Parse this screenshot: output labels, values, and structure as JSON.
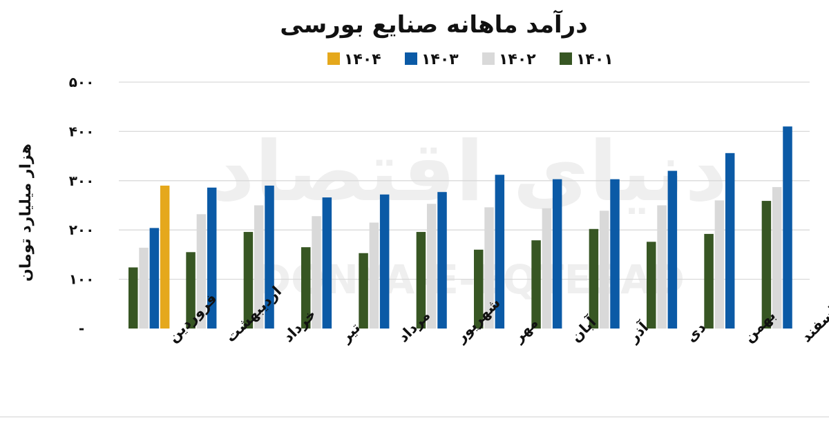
{
  "chart_data": {
    "type": "bar",
    "title": "درآمد ماهانه صنایع بورسی",
    "ylabel": "هزار میلیارد تومان",
    "ylim": [
      0,
      500
    ],
    "yticks": [
      {
        "value": 0,
        "label": "-"
      },
      {
        "value": 100,
        "label": "۱۰۰"
      },
      {
        "value": 200,
        "label": "۲۰۰"
      },
      {
        "value": 300,
        "label": "۳۰۰"
      },
      {
        "value": 400,
        "label": "۴۰۰"
      },
      {
        "value": 500,
        "label": "۵۰۰"
      }
    ],
    "grid": true,
    "legend_position": "top",
    "categories": [
      "فروردین",
      "اردیبهشت",
      "خرداد",
      "تیر",
      "مرداد",
      "شهریور",
      "مهر",
      "آبان",
      "آذر",
      "دی",
      "بهمن",
      "اسفند"
    ],
    "series": [
      {
        "name": "۱۴۰۱",
        "color": "#375623",
        "values": [
          124,
          155,
          196,
          165,
          153,
          196,
          160,
          179,
          202,
          176,
          192,
          259
        ]
      },
      {
        "name": "۱۴۰۲",
        "color": "#d9d9d9",
        "values": [
          164,
          232,
          250,
          228,
          215,
          253,
          246,
          244,
          239,
          250,
          260,
          287
        ]
      },
      {
        "name": "۱۴۰۳",
        "color": "#0b5aa6",
        "values": [
          204,
          286,
          290,
          266,
          272,
          277,
          312,
          303,
          303,
          320,
          356,
          410
        ]
      },
      {
        "name": "۱۴۰۴",
        "color": "#e5a81c",
        "values": [
          290,
          null,
          null,
          null,
          null,
          null,
          null,
          null,
          null,
          null,
          null,
          null
        ]
      }
    ]
  },
  "watermark": {
    "fa": "دنیای اقتصاد",
    "en": "DONYA-E-EQTESAD"
  }
}
